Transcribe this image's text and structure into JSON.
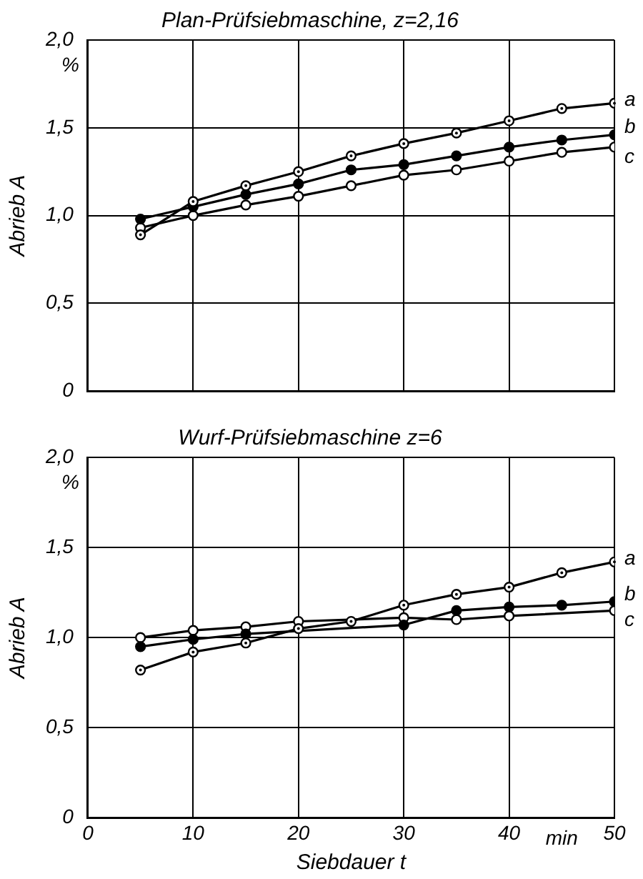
{
  "chart_data": [
    {
      "type": "line",
      "title": "Plan-Prüfsiebmaschine, z=2,16",
      "ylabel": "Abrieb A",
      "annotations": [
        "%"
      ],
      "x": [
        5,
        10,
        15,
        20,
        25,
        30,
        35,
        40,
        45,
        50
      ],
      "series": [
        {
          "name": "a",
          "color": "#000000",
          "values": [
            0.89,
            1.08,
            1.17,
            1.25,
            1.34,
            1.41,
            1.47,
            1.54,
            1.61,
            1.64
          ]
        },
        {
          "name": "b",
          "color": "#000000",
          "values": [
            0.98,
            1.05,
            1.12,
            1.18,
            1.26,
            1.29,
            1.34,
            1.39,
            1.43,
            1.46
          ]
        },
        {
          "name": "c",
          "color": "#000000",
          "values": [
            0.93,
            1.0,
            1.06,
            1.11,
            1.17,
            1.23,
            1.26,
            1.31,
            1.36,
            1.39
          ]
        }
      ],
      "xlim": [
        0,
        50
      ],
      "xticks": [
        0,
        10,
        20,
        30,
        40,
        50
      ],
      "ylim": [
        0,
        2
      ],
      "yticks": [
        0,
        {
          "value": 0.5,
          "label": "0,5"
        },
        {
          "value": 1,
          "label": "1,0"
        },
        {
          "value": 1.5,
          "label": "1,5"
        },
        {
          "value": 2,
          "label": "2,0"
        }
      ],
      "tick_labels": "y",
      "grid": true,
      "legend": false,
      "marker": "circle",
      "line_style": "solid"
    },
    {
      "type": "line",
      "title": "Wurf-Prüfsiebmaschine z=6",
      "xlabel": "Siebdauer t",
      "ylabel": "Abrieb A",
      "annotations": [
        "%",
        "min"
      ],
      "x": [
        5,
        10,
        15,
        20,
        25,
        30,
        35,
        40,
        45,
        50
      ],
      "series": [
        {
          "name": "a",
          "color": "#000000",
          "values": [
            0.82,
            0.92,
            0.97,
            1.05,
            1.09,
            1.18,
            1.24,
            1.28,
            1.36,
            1.42
          ]
        },
        {
          "name": "b",
          "color": "#000000",
          "values": [
            0.95,
            0.99,
            1.02,
            null,
            null,
            1.07,
            1.15,
            1.17,
            1.18,
            1.2
          ]
        },
        {
          "name": "c",
          "color": "#000000",
          "values": [
            1.0,
            1.04,
            1.06,
            1.09,
            null,
            1.11,
            1.1,
            1.12,
            null,
            1.15
          ]
        }
      ],
      "xlim": [
        0,
        50
      ],
      "xticks": [
        0,
        10,
        20,
        30,
        40,
        50
      ],
      "ylim": [
        0,
        2
      ],
      "yticks": [
        0,
        {
          "value": 0.5,
          "label": "0,5"
        },
        {
          "value": 1,
          "label": "1,0"
        },
        {
          "value": 1.5,
          "label": "1,5"
        },
        {
          "value": 2,
          "label": "2,0"
        }
      ],
      "grid": true,
      "legend": false,
      "marker": "circle",
      "line_style": "solid"
    }
  ]
}
